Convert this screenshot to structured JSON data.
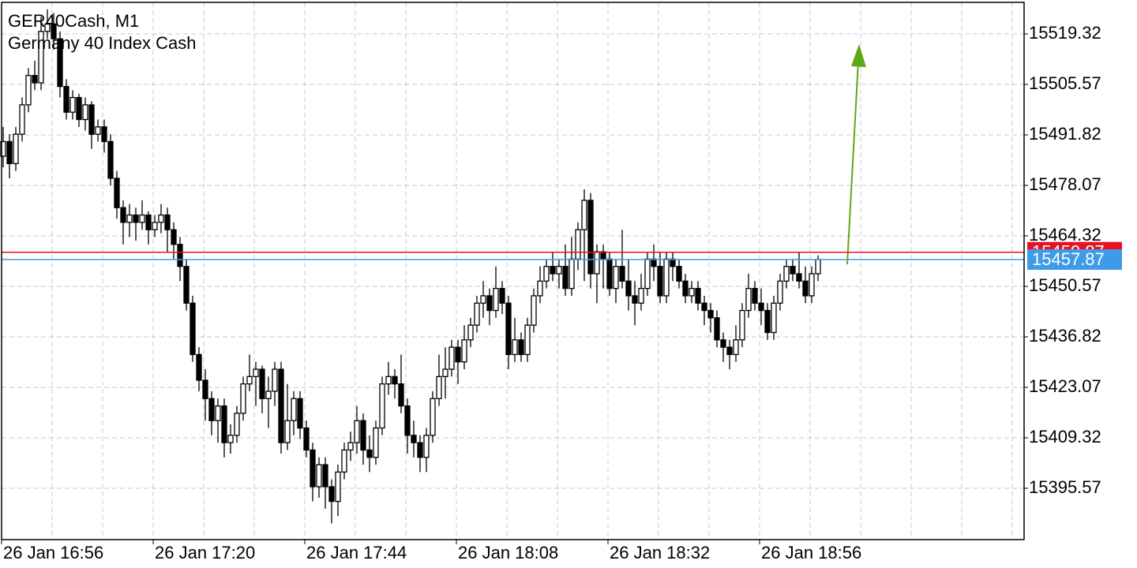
{
  "chart_data": {
    "type": "candlestick",
    "title": "GER40Cash, M1",
    "subtitle": "Germany 40 Index Cash",
    "categories": [
      "26 Jan 16:56",
      null,
      null,
      null,
      null,
      null,
      null,
      null,
      null,
      null,
      null,
      null,
      null,
      null,
      null,
      null,
      null,
      null,
      null,
      null,
      null,
      null,
      null,
      null,
      "26 Jan 17:20",
      null,
      null,
      null,
      null,
      null,
      null,
      null,
      null,
      null,
      null,
      null,
      null,
      null,
      null,
      null,
      null,
      null,
      null,
      null,
      null,
      null,
      null,
      null,
      "26 Jan 17:44",
      null,
      null,
      null,
      null,
      null,
      null,
      null,
      null,
      null,
      null,
      null,
      null,
      null,
      null,
      null,
      null,
      null,
      null,
      null,
      null,
      null,
      null,
      null,
      "26 Jan 18:08",
      null,
      null,
      null,
      null,
      null,
      null,
      null,
      null,
      null,
      null,
      null,
      null,
      null,
      null,
      null,
      null,
      null,
      null,
      null,
      null,
      null,
      null,
      null,
      "26 Jan 18:32",
      null,
      null,
      null,
      null,
      null,
      null,
      null,
      null,
      null,
      null,
      null,
      null,
      null,
      null,
      null,
      null,
      null,
      null,
      null,
      null,
      null,
      null,
      null,
      "26 Jan 18:56",
      null,
      null,
      null,
      null,
      null,
      null,
      null,
      null,
      null
    ],
    "open": [
      15486,
      15490,
      15484,
      15492,
      15500,
      15508,
      15506,
      15520,
      15522,
      15518,
      15505,
      15498,
      15502,
      15496,
      15500,
      15492,
      15494,
      15490,
      15480,
      15472,
      15468,
      15470,
      15468,
      15470,
      15466,
      15468,
      15470,
      15466,
      15462,
      15456,
      15446,
      15432,
      15425,
      15420,
      15414,
      15418,
      15408,
      15410,
      15416,
      15424,
      15426,
      15428,
      15420,
      15422,
      15428,
      15408,
      15414,
      15420,
      15412,
      15406,
      15396,
      15402,
      15396,
      15392,
      15400,
      15406,
      15408,
      15414,
      15406,
      15404,
      15412,
      15424,
      15426,
      15424,
      15418,
      15410,
      15408,
      15404,
      15410,
      15420,
      15426,
      15428,
      15434,
      15430,
      15436,
      15440,
      15446,
      15448,
      15444,
      15450,
      15446,
      15432,
      15436,
      15432,
      15440,
      15448,
      15452,
      15456,
      15454,
      15456,
      15450,
      15458,
      15466,
      15474,
      15454,
      15460,
      15458,
      15450,
      15456,
      15452,
      15448,
      15446,
      15450,
      15458,
      15456,
      15448,
      15458,
      15456,
      15452,
      15448,
      15450,
      15446,
      15444,
      15442,
      15436,
      15434,
      15432,
      15436,
      15444,
      15450,
      15446,
      15444,
      15438,
      15446,
      15452,
      15456,
      15454,
      15452,
      15448,
      15454
    ],
    "high": [
      15494,
      15492,
      15494,
      15502,
      15510,
      15512,
      15524,
      15526,
      15525,
      15520,
      15507,
      15504,
      15503,
      15502,
      15501,
      15496,
      15496,
      15492,
      15482,
      15474,
      15473,
      15472,
      15474,
      15471,
      15470,
      15473,
      15472,
      15468,
      15464,
      15458,
      15448,
      15434,
      15428,
      15422,
      15420,
      15420,
      15413,
      15418,
      15426,
      15432,
      15430,
      15429,
      15426,
      15430,
      15430,
      15424,
      15422,
      15422,
      15414,
      15408,
      15404,
      15404,
      15398,
      15402,
      15408,
      15411,
      15418,
      15416,
      15410,
      15414,
      15426,
      15430,
      15428,
      15432,
      15420,
      15414,
      15410,
      15412,
      15422,
      15432,
      15434,
      15436,
      15436,
      15440,
      15442,
      15448,
      15452,
      15450,
      15456,
      15452,
      15448,
      15442,
      15438,
      15442,
      15450,
      15456,
      15458,
      15460,
      15458,
      15462,
      15464,
      15468,
      15477,
      15476,
      15462,
      15462,
      15460,
      15458,
      15466,
      15458,
      15452,
      15454,
      15460,
      15462,
      15460,
      15460,
      15460,
      15458,
      15454,
      15452,
      15452,
      15448,
      15446,
      15444,
      15438,
      15436,
      15440,
      15446,
      15454,
      15452,
      15450,
      15446,
      15448,
      15454,
      15458,
      15458,
      15460,
      15456,
      15456,
      15459
    ],
    "low": [
      15483,
      15480,
      15482,
      15490,
      15498,
      15504,
      15504,
      15518,
      15515,
      15502,
      15496,
      15496,
      15494,
      15493,
      15488,
      15490,
      15487,
      15478,
      15469,
      15462,
      15464,
      15463,
      15466,
      15462,
      15464,
      15465,
      15460,
      15458,
      15452,
      15444,
      15430,
      15422,
      15414,
      15410,
      15408,
      15404,
      15405,
      15408,
      15414,
      15422,
      15418,
      15416,
      15412,
      15418,
      15405,
      15406,
      15410,
      15409,
      15404,
      15392,
      15393,
      15390,
      15386,
      15388,
      15398,
      15403,
      15405,
      15402,
      15400,
      15402,
      15410,
      15421,
      15420,
      15416,
      15405,
      15404,
      15400,
      15400,
      15408,
      15418,
      15420,
      15426,
      15424,
      15428,
      15434,
      15438,
      15442,
      15440,
      15442,
      15443,
      15428,
      15430,
      15430,
      15430,
      15438,
      15446,
      15450,
      15452,
      15450,
      15448,
      15448,
      15455,
      15452,
      15450,
      15446,
      15450,
      15448,
      15446,
      15450,
      15444,
      15440,
      15444,
      15448,
      15452,
      15446,
      15446,
      15452,
      15450,
      15446,
      15446,
      15444,
      15440,
      15438,
      15434,
      15430,
      15428,
      15430,
      15434,
      15442,
      15444,
      15440,
      15436,
      15436,
      15444,
      15450,
      15452,
      15450,
      15446,
      15446,
      15452
    ],
    "close": [
      15490,
      15484,
      15492,
      15500,
      15508,
      15506,
      15520,
      15522,
      15518,
      15505,
      15498,
      15502,
      15496,
      15500,
      15492,
      15494,
      15490,
      15480,
      15472,
      15468,
      15470,
      15468,
      15470,
      15466,
      15468,
      15470,
      15466,
      15462,
      15456,
      15446,
      15432,
      15425,
      15420,
      15414,
      15418,
      15408,
      15410,
      15416,
      15424,
      15426,
      15428,
      15420,
      15422,
      15428,
      15408,
      15414,
      15420,
      15412,
      15406,
      15396,
      15402,
      15396,
      15392,
      15400,
      15406,
      15408,
      15414,
      15406,
      15404,
      15412,
      15424,
      15426,
      15424,
      15418,
      15410,
      15408,
      15404,
      15410,
      15420,
      15426,
      15428,
      15434,
      15430,
      15436,
      15440,
      15446,
      15448,
      15444,
      15450,
      15446,
      15432,
      15436,
      15432,
      15440,
      15448,
      15452,
      15456,
      15454,
      15456,
      15450,
      15458,
      15466,
      15474,
      15454,
      15460,
      15458,
      15450,
      15456,
      15452,
      15448,
      15446,
      15450,
      15458,
      15456,
      15448,
      15458,
      15456,
      15452,
      15448,
      15450,
      15446,
      15444,
      15442,
      15436,
      15434,
      15432,
      15436,
      15444,
      15450,
      15446,
      15444,
      15438,
      15446,
      15452,
      15456,
      15454,
      15452,
      15448,
      15454,
      15457.87
    ],
    "ylim": [
      15381.6,
      15527.91
    ],
    "yticks": [
      15395.57,
      15409.32,
      15423.07,
      15436.82,
      15450.57,
      15464.32,
      15478.07,
      15491.82,
      15505.57,
      15519.32
    ],
    "grid": true,
    "price_lines": [
      {
        "value": 15459.87,
        "color": "#e81123"
      },
      {
        "value": 15457.87,
        "color": "#3d9be9"
      }
    ]
  }
}
